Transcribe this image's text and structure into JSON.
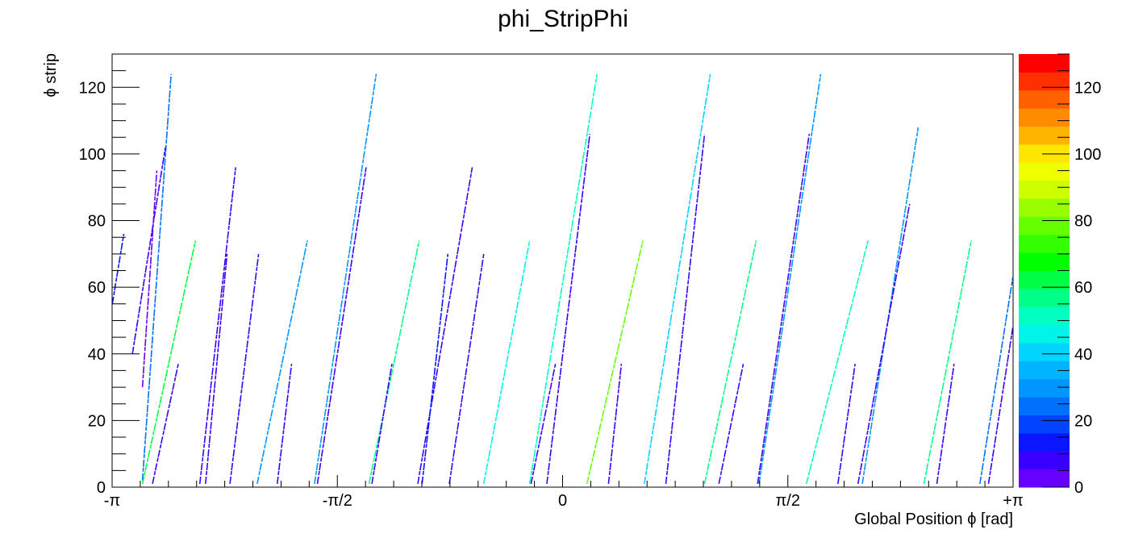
{
  "chart_data": {
    "type": "heatmap",
    "title": "phi_StripPhi",
    "xlabel": "Global Position ϕ [rad]",
    "ylabel": "ϕ strip",
    "xlim": [
      -3.14159,
      3.14159
    ],
    "ylim": [
      0,
      130
    ],
    "x_tick_labels": [
      {
        "value": -3.14159,
        "label": "-π"
      },
      {
        "value": -1.5708,
        "label": "-π/2"
      },
      {
        "value": 0,
        "label": "0"
      },
      {
        "value": 1.5708,
        "label": "π/2"
      },
      {
        "value": 3.14159,
        "label": "+π"
      }
    ],
    "y_ticks": [
      0,
      20,
      40,
      60,
      80,
      100,
      120
    ],
    "colorbar": {
      "range": [
        0,
        130
      ],
      "ticks": [
        0,
        20,
        40,
        60,
        80,
        100,
        120
      ],
      "colors": [
        "#6600ff",
        "#3a00ff",
        "#0a16ff",
        "#0044ff",
        "#0070ff",
        "#0096ff",
        "#00b4ff",
        "#00d4ff",
        "#00f5e8",
        "#00ffc0",
        "#00ff88",
        "#00ff44",
        "#00ff00",
        "#33ff00",
        "#66ff00",
        "#99ff00",
        "#ccff00",
        "#eeff00",
        "#ffe600",
        "#ffb400",
        "#ff8c00",
        "#ff6000",
        "#ff3000",
        "#ff0000"
      ]
    },
    "segments": [
      {
        "x1": -2.93,
        "x2": -2.73,
        "y1": 2,
        "y2": 124,
        "value": 25
      },
      {
        "x1": -3.14,
        "x2": -3.06,
        "y1": 55,
        "y2": 76,
        "value": 15
      },
      {
        "x1": -3.0,
        "x2": -2.77,
        "y1": 40,
        "y2": 102,
        "value": 6
      },
      {
        "x1": -2.93,
        "x2": -2.83,
        "y1": 30,
        "y2": 95,
        "value": 5
      },
      {
        "x1": -2.93,
        "x2": -2.56,
        "y1": 1,
        "y2": 74,
        "value": 60
      },
      {
        "x1": -2.86,
        "x2": -2.68,
        "y1": 1,
        "y2": 37,
        "value": 8
      },
      {
        "x1": -2.53,
        "x2": -2.28,
        "y1": 1,
        "y2": 96,
        "value": 6
      },
      {
        "x1": -2.49,
        "x2": -2.34,
        "y1": 1,
        "y2": 70,
        "value": 10
      },
      {
        "x1": -2.32,
        "x2": -2.12,
        "y1": 1,
        "y2": 70,
        "value": 6
      },
      {
        "x1": -2.13,
        "x2": -1.78,
        "y1": 1,
        "y2": 74,
        "value": 30
      },
      {
        "x1": -1.99,
        "x2": -1.89,
        "y1": 1,
        "y2": 37,
        "value": 7
      },
      {
        "x1": -1.73,
        "x2": -1.3,
        "y1": 1,
        "y2": 124,
        "value": 30
      },
      {
        "x1": -1.71,
        "x2": -1.37,
        "y1": 1,
        "y2": 96,
        "value": 6
      },
      {
        "x1": -1.35,
        "x2": -1.0,
        "y1": 1,
        "y2": 74,
        "value": 55
      },
      {
        "x1": -1.33,
        "x2": -1.19,
        "y1": 1,
        "y2": 37,
        "value": 7
      },
      {
        "x1": -1.01,
        "x2": -0.63,
        "y1": 1,
        "y2": 96,
        "value": 6
      },
      {
        "x1": -0.98,
        "x2": -0.8,
        "y1": 1,
        "y2": 70,
        "value": 12
      },
      {
        "x1": -0.79,
        "x2": -0.55,
        "y1": 1,
        "y2": 70,
        "value": 6
      },
      {
        "x1": -0.55,
        "x2": -0.23,
        "y1": 1,
        "y2": 74,
        "value": 45
      },
      {
        "x1": -0.22,
        "x2": -0.05,
        "y1": 1,
        "y2": 37,
        "value": 8
      },
      {
        "x1": -0.23,
        "x2": 0.24,
        "y1": 1,
        "y2": 124,
        "value": 50
      },
      {
        "x1": -0.11,
        "x2": 0.19,
        "y1": 1,
        "y2": 106,
        "value": 6
      },
      {
        "x1": 0.17,
        "x2": 0.56,
        "y1": 1,
        "y2": 74,
        "value": 80
      },
      {
        "x1": 0.32,
        "x2": 0.41,
        "y1": 1,
        "y2": 37,
        "value": 8
      },
      {
        "x1": 0.57,
        "x2": 1.03,
        "y1": 1,
        "y2": 124,
        "value": 40
      },
      {
        "x1": 0.72,
        "x2": 0.99,
        "y1": 1,
        "y2": 106,
        "value": 6
      },
      {
        "x1": 0.99,
        "x2": 1.35,
        "y1": 1,
        "y2": 74,
        "value": 55
      },
      {
        "x1": 1.09,
        "x2": 1.26,
        "y1": 1,
        "y2": 37,
        "value": 8
      },
      {
        "x1": 1.37,
        "x2": 1.8,
        "y1": 1,
        "y2": 124,
        "value": 30
      },
      {
        "x1": 1.36,
        "x2": 1.72,
        "y1": 1,
        "y2": 106,
        "value": 6
      },
      {
        "x1": 1.7,
        "x2": 2.13,
        "y1": 1,
        "y2": 74,
        "value": 50
      },
      {
        "x1": 1.92,
        "x2": 2.04,
        "y1": 1,
        "y2": 37,
        "value": 8
      },
      {
        "x1": 2.09,
        "x2": 2.48,
        "y1": 1,
        "y2": 108,
        "value": 30
      },
      {
        "x1": 2.06,
        "x2": 2.42,
        "y1": 1,
        "y2": 85,
        "value": 6
      },
      {
        "x1": 2.52,
        "x2": 2.85,
        "y1": 1,
        "y2": 74,
        "value": 55
      },
      {
        "x1": 2.61,
        "x2": 2.73,
        "y1": 1,
        "y2": 37,
        "value": 8
      },
      {
        "x1": 2.91,
        "x2": 3.14,
        "y1": 1,
        "y2": 63,
        "value": 25
      },
      {
        "x1": 2.97,
        "x2": 3.14,
        "y1": 1,
        "y2": 48,
        "value": 6
      }
    ]
  }
}
